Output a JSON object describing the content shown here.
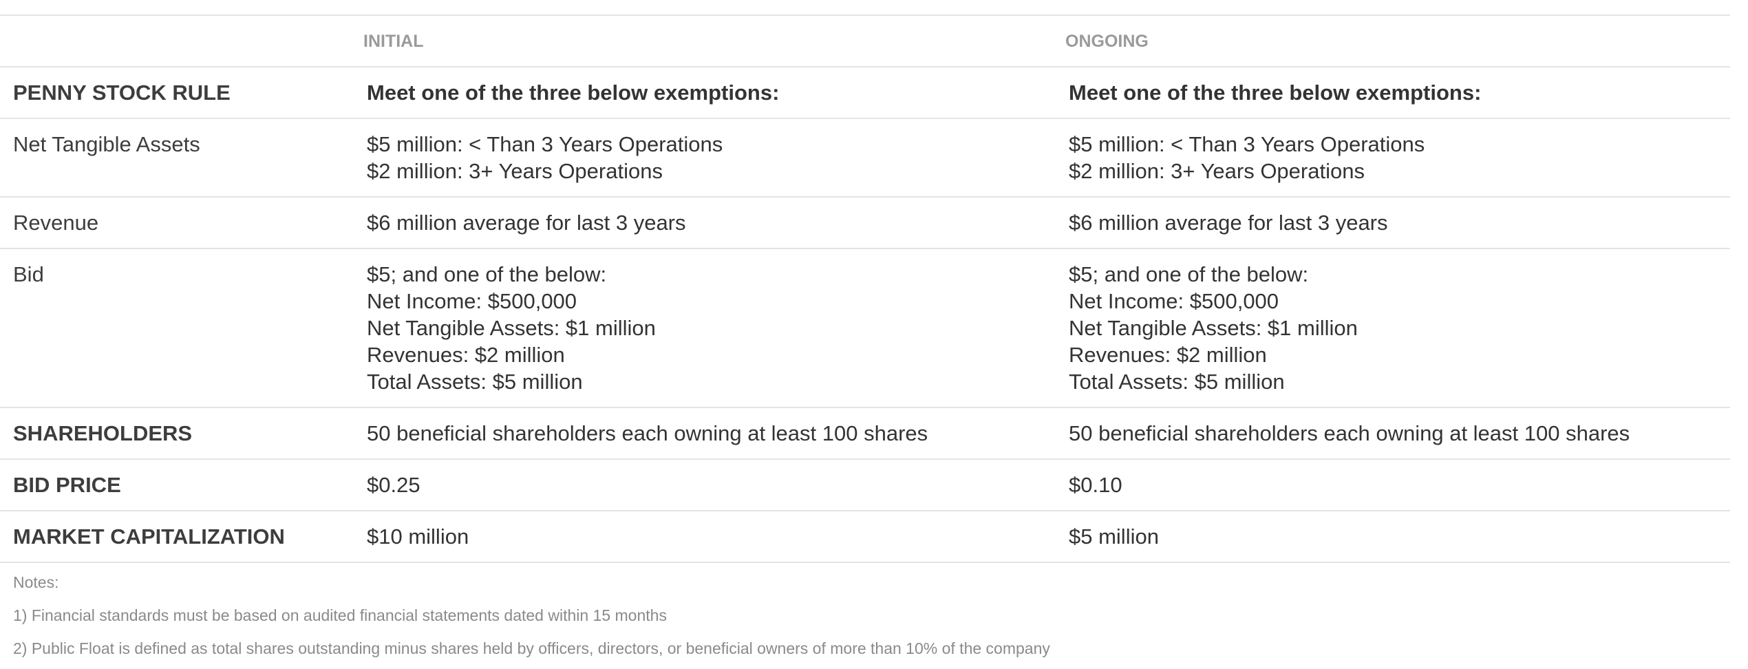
{
  "header": {
    "columns": [
      "INITIAL",
      "ONGOING"
    ]
  },
  "table": {
    "rows": [
      {
        "label": "PENNY STOCK RULE",
        "initial": [
          "Meet one of the three below exemptions:"
        ],
        "ongoing": [
          "Meet one of the three below exemptions:"
        ]
      },
      {
        "label": "Net Tangible Assets",
        "initial": [
          "$5 million: < Than 3 Years Operations",
          "$2 million: 3+ Years Operations"
        ],
        "ongoing": [
          "$5 million: < Than 3 Years Operations",
          "$2 million: 3+ Years Operations"
        ]
      },
      {
        "label": "Revenue",
        "initial": [
          "$6 million average for last 3 years"
        ],
        "ongoing": [
          "$6 million average for last 3 years"
        ]
      },
      {
        "label": "Bid",
        "initial": [
          "$5; and one of the below:",
          "Net Income: $500,000",
          "Net Tangible Assets: $1 million",
          "Revenues: $2 million",
          "Total Assets: $5 million"
        ],
        "ongoing": [
          "$5; and one of the below:",
          "Net Income: $500,000",
          "Net Tangible Assets: $1 million",
          "Revenues: $2 million",
          "Total Assets: $5 million"
        ]
      },
      {
        "label": "SHAREHOLDERS",
        "initial": [
          "50 beneficial shareholders each owning at least 100 shares"
        ],
        "ongoing": [
          "50 beneficial shareholders each owning at least 100 shares"
        ]
      },
      {
        "label": "BID PRICE",
        "initial": [
          "$0.25"
        ],
        "ongoing": [
          "$0.10"
        ]
      },
      {
        "label": "MARKET CAPITALIZATION",
        "initial": [
          "$10 million"
        ],
        "ongoing": [
          "$5 million"
        ]
      }
    ]
  },
  "notes": [
    "Notes:",
    "1) Financial standards must be based on audited financial statements dated within 15 months",
    "2) Public Float is defined as total shares outstanding minus shares held by officers, directors, or beneficial owners of more than 10% of the company"
  ]
}
